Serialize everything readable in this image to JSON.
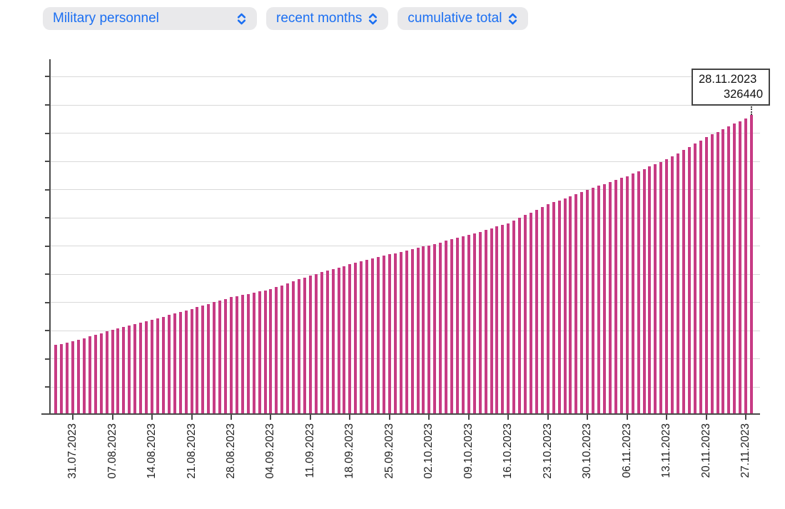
{
  "colors": {
    "accent_blue": "#1b6ff2",
    "pill_background": "#e9e9eb",
    "bar_pink": "#c73b84",
    "gridline_gray": "#d9d9d9",
    "axis_gray": "#4a4a4a"
  },
  "controls": {
    "dataset_label": "Military personnel",
    "range_label": "recent months",
    "mode_label": "cumulative total"
  },
  "tooltip": {
    "date": "28.11.2023",
    "value": "326440"
  },
  "chart_data": {
    "type": "bar",
    "title": "",
    "xlabel": "",
    "ylabel": "",
    "legend": false,
    "grid": true,
    "grid_step": 10000,
    "ylim": [
      220400,
      346200
    ],
    "y_tick_labels_visible": false,
    "x_tick_labels": [
      "31.07.2023",
      "07.08.2023",
      "14.08.2023",
      "21.08.2023",
      "28.08.2023",
      "04.09.2023",
      "11.09.2023",
      "18.09.2023",
      "25.09.2023",
      "02.10.2023",
      "09.10.2023",
      "16.10.2023",
      "23.10.2023",
      "30.10.2023",
      "06.11.2023",
      "13.11.2023",
      "20.11.2023",
      "27.11.2023"
    ],
    "annotation": {
      "date": "28.11.2023",
      "value": 326440
    },
    "x": [
      "28.07.2023",
      "29.07.2023",
      "30.07.2023",
      "31.07.2023",
      "01.08.2023",
      "02.08.2023",
      "03.08.2023",
      "04.08.2023",
      "05.08.2023",
      "06.08.2023",
      "07.08.2023",
      "08.08.2023",
      "09.08.2023",
      "10.08.2023",
      "11.08.2023",
      "12.08.2023",
      "13.08.2023",
      "14.08.2023",
      "15.08.2023",
      "16.08.2023",
      "17.08.2023",
      "18.08.2023",
      "19.08.2023",
      "20.08.2023",
      "21.08.2023",
      "22.08.2023",
      "23.08.2023",
      "24.08.2023",
      "25.08.2023",
      "26.08.2023",
      "27.08.2023",
      "28.08.2023",
      "29.08.2023",
      "30.08.2023",
      "31.08.2023",
      "01.09.2023",
      "02.09.2023",
      "03.09.2023",
      "04.09.2023",
      "05.09.2023",
      "06.09.2023",
      "07.09.2023",
      "08.09.2023",
      "09.09.2023",
      "10.09.2023",
      "11.09.2023",
      "12.09.2023",
      "13.09.2023",
      "14.09.2023",
      "15.09.2023",
      "16.09.2023",
      "17.09.2023",
      "18.09.2023",
      "19.09.2023",
      "20.09.2023",
      "21.09.2023",
      "22.09.2023",
      "23.09.2023",
      "24.09.2023",
      "25.09.2023",
      "26.09.2023",
      "27.09.2023",
      "28.09.2023",
      "29.09.2023",
      "30.09.2023",
      "01.10.2023",
      "02.10.2023",
      "03.10.2023",
      "04.10.2023",
      "05.10.2023",
      "06.10.2023",
      "07.10.2023",
      "08.10.2023",
      "09.10.2023",
      "10.10.2023",
      "11.10.2023",
      "12.10.2023",
      "13.10.2023",
      "14.10.2023",
      "15.10.2023",
      "16.10.2023",
      "17.10.2023",
      "18.10.2023",
      "19.10.2023",
      "20.10.2023",
      "21.10.2023",
      "22.10.2023",
      "23.10.2023",
      "24.10.2023",
      "25.10.2023",
      "26.10.2023",
      "27.10.2023",
      "28.10.2023",
      "29.10.2023",
      "30.10.2023",
      "31.10.2023",
      "01.11.2023",
      "02.11.2023",
      "03.11.2023",
      "04.11.2023",
      "05.11.2023",
      "06.11.2023",
      "07.11.2023",
      "08.11.2023",
      "09.11.2023",
      "10.11.2023",
      "11.11.2023",
      "12.11.2023",
      "13.11.2023",
      "14.11.2023",
      "15.11.2023",
      "16.11.2023",
      "17.11.2023",
      "18.11.2023",
      "19.11.2023",
      "20.11.2023",
      "21.11.2023",
      "22.11.2023",
      "23.11.2023",
      "24.11.2023",
      "25.11.2023",
      "26.11.2023",
      "27.11.2023",
      "28.11.2023"
    ],
    "values": [
      244830,
      245280,
      245740,
      246190,
      246770,
      247350,
      247930,
      248500,
      249080,
      249660,
      250240,
      250760,
      251270,
      251790,
      252300,
      252820,
      253330,
      253850,
      254400,
      254950,
      255500,
      256060,
      256610,
      257160,
      257710,
      258300,
      258890,
      259480,
      260070,
      260660,
      261250,
      261840,
      262240,
      262650,
      263050,
      263450,
      263850,
      264260,
      264660,
      265360,
      266060,
      266760,
      267460,
      268160,
      268860,
      269560,
      270120,
      270670,
      271230,
      271790,
      272350,
      272900,
      273460,
      273960,
      274470,
      274970,
      275480,
      275980,
      276490,
      276990,
      277450,
      277920,
      278380,
      278840,
      279300,
      279770,
      280230,
      280750,
      281270,
      281790,
      282320,
      282840,
      283360,
      283880,
      284470,
      285070,
      285660,
      286260,
      286850,
      287450,
      288040,
      288990,
      289950,
      290900,
      291850,
      292800,
      293760,
      294710,
      295460,
      296200,
      296950,
      297700,
      298450,
      299190,
      299940,
      300630,
      301330,
      302020,
      302710,
      303400,
      304100,
      304790,
      305630,
      306460,
      307300,
      308140,
      308980,
      309810,
      310650,
      311780,
      312910,
      314050,
      315180,
      316310,
      317440,
      318570,
      319530,
      320480,
      321440,
      322390,
      323350,
      324300,
      325260,
      326440
    ]
  }
}
